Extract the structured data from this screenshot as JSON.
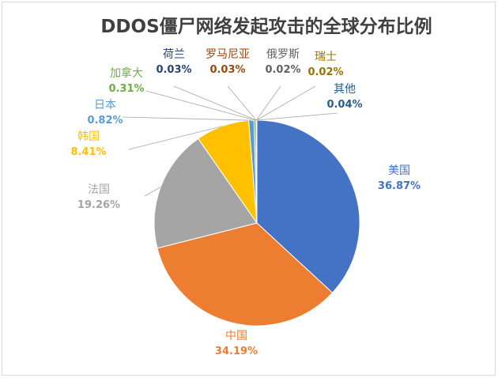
{
  "chart_data": {
    "type": "pie",
    "title": "DDOS僵尸网络发起攻击的全球分布比例",
    "categories": [
      "美国",
      "中国",
      "法国",
      "韩国",
      "日本",
      "加拿大",
      "荷兰",
      "罗马尼亚",
      "俄罗斯",
      "瑞士",
      "其他"
    ],
    "values": [
      36.87,
      34.19,
      19.26,
      8.41,
      0.82,
      0.31,
      0.03,
      0.03,
      0.02,
      0.02,
      0.04
    ],
    "value_labels": [
      "36.87%",
      "34.19%",
      "19.26%",
      "8.41%",
      "0.82%",
      "0.31%",
      "0.03%",
      "0.03%",
      "0.02%",
      "0.02%",
      "0.04%"
    ],
    "colors": [
      "#4472C4",
      "#ED7D31",
      "#A5A5A5",
      "#FFC000",
      "#5B9BD5",
      "#70AD47",
      "#264478",
      "#9E480E",
      "#636363",
      "#997300",
      "#255E91"
    ],
    "legend": "none",
    "data_labels": "outside, category name and percentage"
  }
}
